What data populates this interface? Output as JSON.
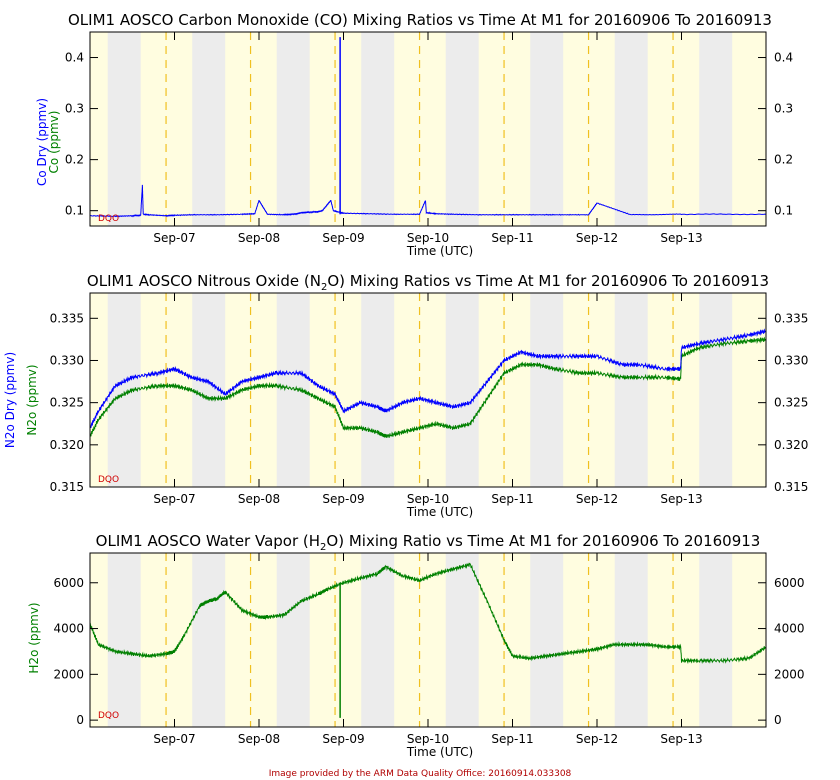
{
  "credit": "Image provided by the ARM Data Quality Office: 20160914.033308",
  "dqo_label": "DQO",
  "colors": {
    "dry": "#0000ff",
    "wet": "#008000",
    "day": "#fffde0",
    "night": "#ececec",
    "dash": "#f0c020"
  },
  "chart_data": [
    {
      "type": "line",
      "title": "OLIM1 AOSCO Carbon Monoxide (CO) Mixing Ratios vs Time At M1 for 20160906 To 20160913",
      "xlabel": "Time (UTC)",
      "ylabel_dry": "Co Dry (ppmv)",
      "ylabel_wet": "Co (ppmv)",
      "x_ticks": [
        "Sep-07",
        "Sep-08",
        "Sep-09",
        "Sep-10",
        "Sep-11",
        "Sep-12",
        "Sep-13"
      ],
      "y_ticks": [
        "0.1",
        "0.2",
        "0.3",
        "0.4"
      ],
      "ylim": [
        0.07,
        0.45
      ],
      "xlim_days": [
        0,
        8
      ],
      "series": [
        {
          "name": "Co Dry",
          "color": "#0000ff",
          "x": [
            0,
            0.3,
            0.5,
            0.6,
            0.62,
            0.63,
            0.7,
            0.9,
            1.0,
            1.2,
            1.5,
            1.8,
            1.95,
            2.0,
            2.1,
            2.3,
            2.4,
            2.45,
            2.5,
            2.6,
            2.7,
            2.75,
            2.8,
            2.85,
            2.88,
            3.0,
            3.3,
            3.6,
            3.9,
            3.97,
            3.98,
            4.1,
            4.3,
            4.6,
            4.9,
            5.2,
            5.5,
            5.9,
            6.0,
            6.4,
            7.0,
            7.5,
            8.0
          ],
          "y": [
            0.09,
            0.089,
            0.09,
            0.091,
            0.15,
            0.093,
            0.092,
            0.09,
            0.091,
            0.092,
            0.092,
            0.093,
            0.094,
            0.12,
            0.093,
            0.092,
            0.093,
            0.094,
            0.096,
            0.097,
            0.098,
            0.1,
            0.11,
            0.12,
            0.1,
            0.095,
            0.094,
            0.093,
            0.093,
            0.12,
            0.096,
            0.094,
            0.093,
            0.092,
            0.092,
            0.092,
            0.092,
            0.092,
            0.115,
            0.092,
            0.093,
            0.093,
            0.093
          ],
          "spike": {
            "x": 2.96,
            "y": 0.44
          }
        }
      ]
    },
    {
      "type": "line",
      "title": "OLIM1 AOSCO Nitrous Oxide (N2O) Mixing Ratios vs Time At M1 for 20160906 To 20160913",
      "xlabel": "Time (UTC)",
      "ylabel_dry": "N2o Dry (ppmv)",
      "ylabel_wet": "N2o (ppmv)",
      "x_ticks": [
        "Sep-07",
        "Sep-08",
        "Sep-09",
        "Sep-10",
        "Sep-11",
        "Sep-12",
        "Sep-13"
      ],
      "y_ticks": [
        "0.315",
        "0.320",
        "0.325",
        "0.330",
        "0.335"
      ],
      "ylim": [
        0.315,
        0.338
      ],
      "xlim_days": [
        0,
        8
      ],
      "series": [
        {
          "name": "N2o Dry",
          "color": "#0000ff",
          "x": [
            0,
            0.1,
            0.3,
            0.5,
            0.8,
            1.0,
            1.2,
            1.4,
            1.6,
            1.8,
            2.0,
            2.2,
            2.5,
            2.7,
            2.9,
            3.0,
            3.2,
            3.4,
            3.5,
            3.7,
            3.9,
            4.1,
            4.3,
            4.5,
            4.7,
            4.9,
            5.1,
            5.3,
            5.5,
            5.8,
            6.0,
            6.3,
            6.5,
            6.8,
            6.99,
            7.0,
            7.2,
            7.5,
            7.8,
            8.0
          ],
          "y": [
            0.322,
            0.324,
            0.327,
            0.328,
            0.3285,
            0.329,
            0.328,
            0.3275,
            0.326,
            0.3275,
            0.328,
            0.3285,
            0.3285,
            0.327,
            0.326,
            0.324,
            0.325,
            0.3245,
            0.324,
            0.325,
            0.3255,
            0.325,
            0.3245,
            0.325,
            0.3275,
            0.33,
            0.331,
            0.3305,
            0.3305,
            0.3305,
            0.3305,
            0.3295,
            0.3295,
            0.329,
            0.329,
            0.3315,
            0.332,
            0.3325,
            0.333,
            0.3335
          ]
        },
        {
          "name": "N2o",
          "color": "#008000",
          "x": [
            0,
            0.1,
            0.3,
            0.5,
            0.8,
            1.0,
            1.2,
            1.4,
            1.6,
            1.8,
            2.0,
            2.2,
            2.5,
            2.7,
            2.9,
            3.0,
            3.2,
            3.4,
            3.5,
            3.7,
            3.9,
            4.1,
            4.3,
            4.5,
            4.7,
            4.9,
            5.1,
            5.3,
            5.5,
            5.8,
            6.0,
            6.3,
            6.5,
            6.8,
            6.99,
            7.0,
            7.2,
            7.5,
            7.8,
            8.0
          ],
          "y": [
            0.321,
            0.323,
            0.3255,
            0.3265,
            0.327,
            0.327,
            0.3265,
            0.3255,
            0.3255,
            0.3265,
            0.327,
            0.327,
            0.3265,
            0.3255,
            0.3245,
            0.322,
            0.322,
            0.3215,
            0.321,
            0.3215,
            0.322,
            0.3225,
            0.322,
            0.3225,
            0.3255,
            0.3285,
            0.3295,
            0.3295,
            0.329,
            0.3285,
            0.3285,
            0.328,
            0.328,
            0.328,
            0.3278,
            0.3305,
            0.3315,
            0.332,
            0.3323,
            0.3325
          ]
        }
      ]
    },
    {
      "type": "line",
      "title": "OLIM1 AOSCO Water Vapor (H2O) Mixing Ratio vs Time At M1 for 20160906 To 20160913",
      "xlabel": "Time (UTC)",
      "ylabel_wet": "H2o (ppmv)",
      "x_ticks": [
        "Sep-07",
        "Sep-08",
        "Sep-09",
        "Sep-10",
        "Sep-11",
        "Sep-12",
        "Sep-13"
      ],
      "y_ticks": [
        "0",
        "2000",
        "4000",
        "6000"
      ],
      "ylim": [
        -300,
        7300
      ],
      "xlim_days": [
        0,
        8
      ],
      "series": [
        {
          "name": "H2o",
          "color": "#008000",
          "x": [
            0,
            0.1,
            0.3,
            0.5,
            0.7,
            0.9,
            1.0,
            1.1,
            1.3,
            1.4,
            1.5,
            1.6,
            1.8,
            2.0,
            2.1,
            2.3,
            2.5,
            2.7,
            2.8,
            3.0,
            3.2,
            3.4,
            3.5,
            3.7,
            3.9,
            4.1,
            4.3,
            4.5,
            4.7,
            4.9,
            5.0,
            5.2,
            5.4,
            5.6,
            5.8,
            6.0,
            6.2,
            6.4,
            6.6,
            6.8,
            6.99,
            7.0,
            7.2,
            7.5,
            7.8,
            8.0
          ],
          "y": [
            4200,
            3300,
            3000,
            2900,
            2800,
            2900,
            3000,
            3600,
            5000,
            5200,
            5300,
            5600,
            4800,
            4500,
            4500,
            4600,
            5200,
            5500,
            5700,
            6000,
            6200,
            6400,
            6700,
            6300,
            6100,
            6400,
            6600,
            6800,
            5200,
            3500,
            2800,
            2700,
            2800,
            2900,
            3000,
            3100,
            3300,
            3300,
            3300,
            3200,
            3200,
            2600,
            2600,
            2600,
            2700,
            3200
          ],
          "spike": {
            "x": 2.96,
            "y": 100
          }
        }
      ]
    }
  ]
}
